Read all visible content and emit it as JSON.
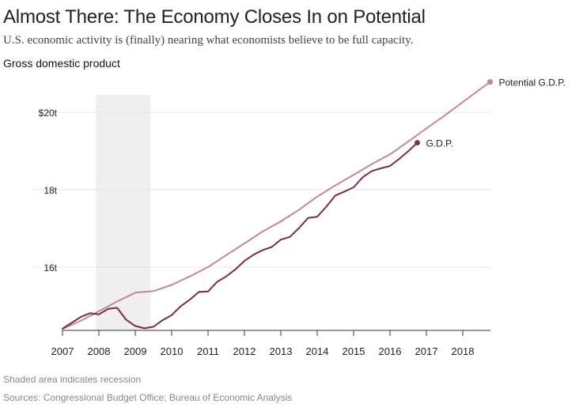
{
  "header": {
    "title": "Almost There: The Economy Closes In on Potential",
    "subtitle": "U.S. economic activity is (finally) nearing what economists believe to be full capacity.",
    "panel_label": "Gross domestic product"
  },
  "footer": {
    "note": "Shaded area indicates recession",
    "source": "Sources: Congressional Budget Office; Bureau of Economic Analysis"
  },
  "colors": {
    "potential": "#c08898",
    "gdp": "#7a2a4e",
    "recession": "#f0efed",
    "grid": "#e4e4e4",
    "axis": "#333333"
  },
  "chart_data": {
    "type": "line",
    "title": "Gross domestic product",
    "xlabel": "",
    "ylabel": "",
    "xlim": [
      2007,
      2019
    ],
    "ylim": [
      14.2,
      20.6
    ],
    "x_ticks": [
      "2007",
      "2008",
      "2009",
      "2010",
      "2011",
      "2012",
      "2013",
      "2014",
      "2015",
      "2016",
      "2017",
      "2018"
    ],
    "y_ticks": [
      {
        "value": 16,
        "label": "16t"
      },
      {
        "value": 18,
        "label": "18t"
      },
      {
        "value": 20,
        "label": "$20t"
      }
    ],
    "recession": {
      "start": 2007.92,
      "end": 2009.42
    },
    "series": [
      {
        "name": "Potential G.D.P.",
        "label": "Potential G.D.P.",
        "x": [
          2007.0,
          2007.5,
          2008.0,
          2008.5,
          2009.0,
          2009.5,
          2010.0,
          2010.5,
          2011.0,
          2011.5,
          2012.0,
          2012.5,
          2013.0,
          2013.5,
          2014.0,
          2014.5,
          2015.0,
          2015.5,
          2016.0,
          2016.5,
          2017.0,
          2017.5,
          2018.0,
          2018.5,
          2018.75
        ],
        "values": [
          14.35,
          14.55,
          14.8,
          15.05,
          15.28,
          15.32,
          15.48,
          15.7,
          15.94,
          16.25,
          16.55,
          16.86,
          17.12,
          17.42,
          17.76,
          18.05,
          18.32,
          18.6,
          18.85,
          19.18,
          19.52,
          19.85,
          20.2,
          20.55,
          20.72
        ]
      },
      {
        "name": "G.D.P.",
        "label": "G.D.P.",
        "x": [
          2007.0,
          2007.25,
          2007.5,
          2007.75,
          2008.0,
          2008.25,
          2008.5,
          2008.75,
          2009.0,
          2009.25,
          2009.5,
          2009.75,
          2010.0,
          2010.25,
          2010.5,
          2010.75,
          2011.0,
          2011.25,
          2011.5,
          2011.75,
          2012.0,
          2012.25,
          2012.5,
          2012.75,
          2013.0,
          2013.25,
          2013.5,
          2013.75,
          2014.0,
          2014.25,
          2014.5,
          2014.75,
          2015.0,
          2015.25,
          2015.5,
          2015.75,
          2016.0,
          2016.25,
          2016.5,
          2016.75
        ],
        "values": [
          14.35,
          14.5,
          14.65,
          14.75,
          14.72,
          14.86,
          14.89,
          14.58,
          14.42,
          14.36,
          14.4,
          14.57,
          14.7,
          14.93,
          15.1,
          15.3,
          15.31,
          15.56,
          15.7,
          15.88,
          16.1,
          16.26,
          16.38,
          16.46,
          16.65,
          16.72,
          16.95,
          17.21,
          17.24,
          17.5,
          17.79,
          17.89,
          18.0,
          18.26,
          18.42,
          18.49,
          18.55,
          18.73,
          18.93,
          19.15
        ]
      }
    ]
  }
}
